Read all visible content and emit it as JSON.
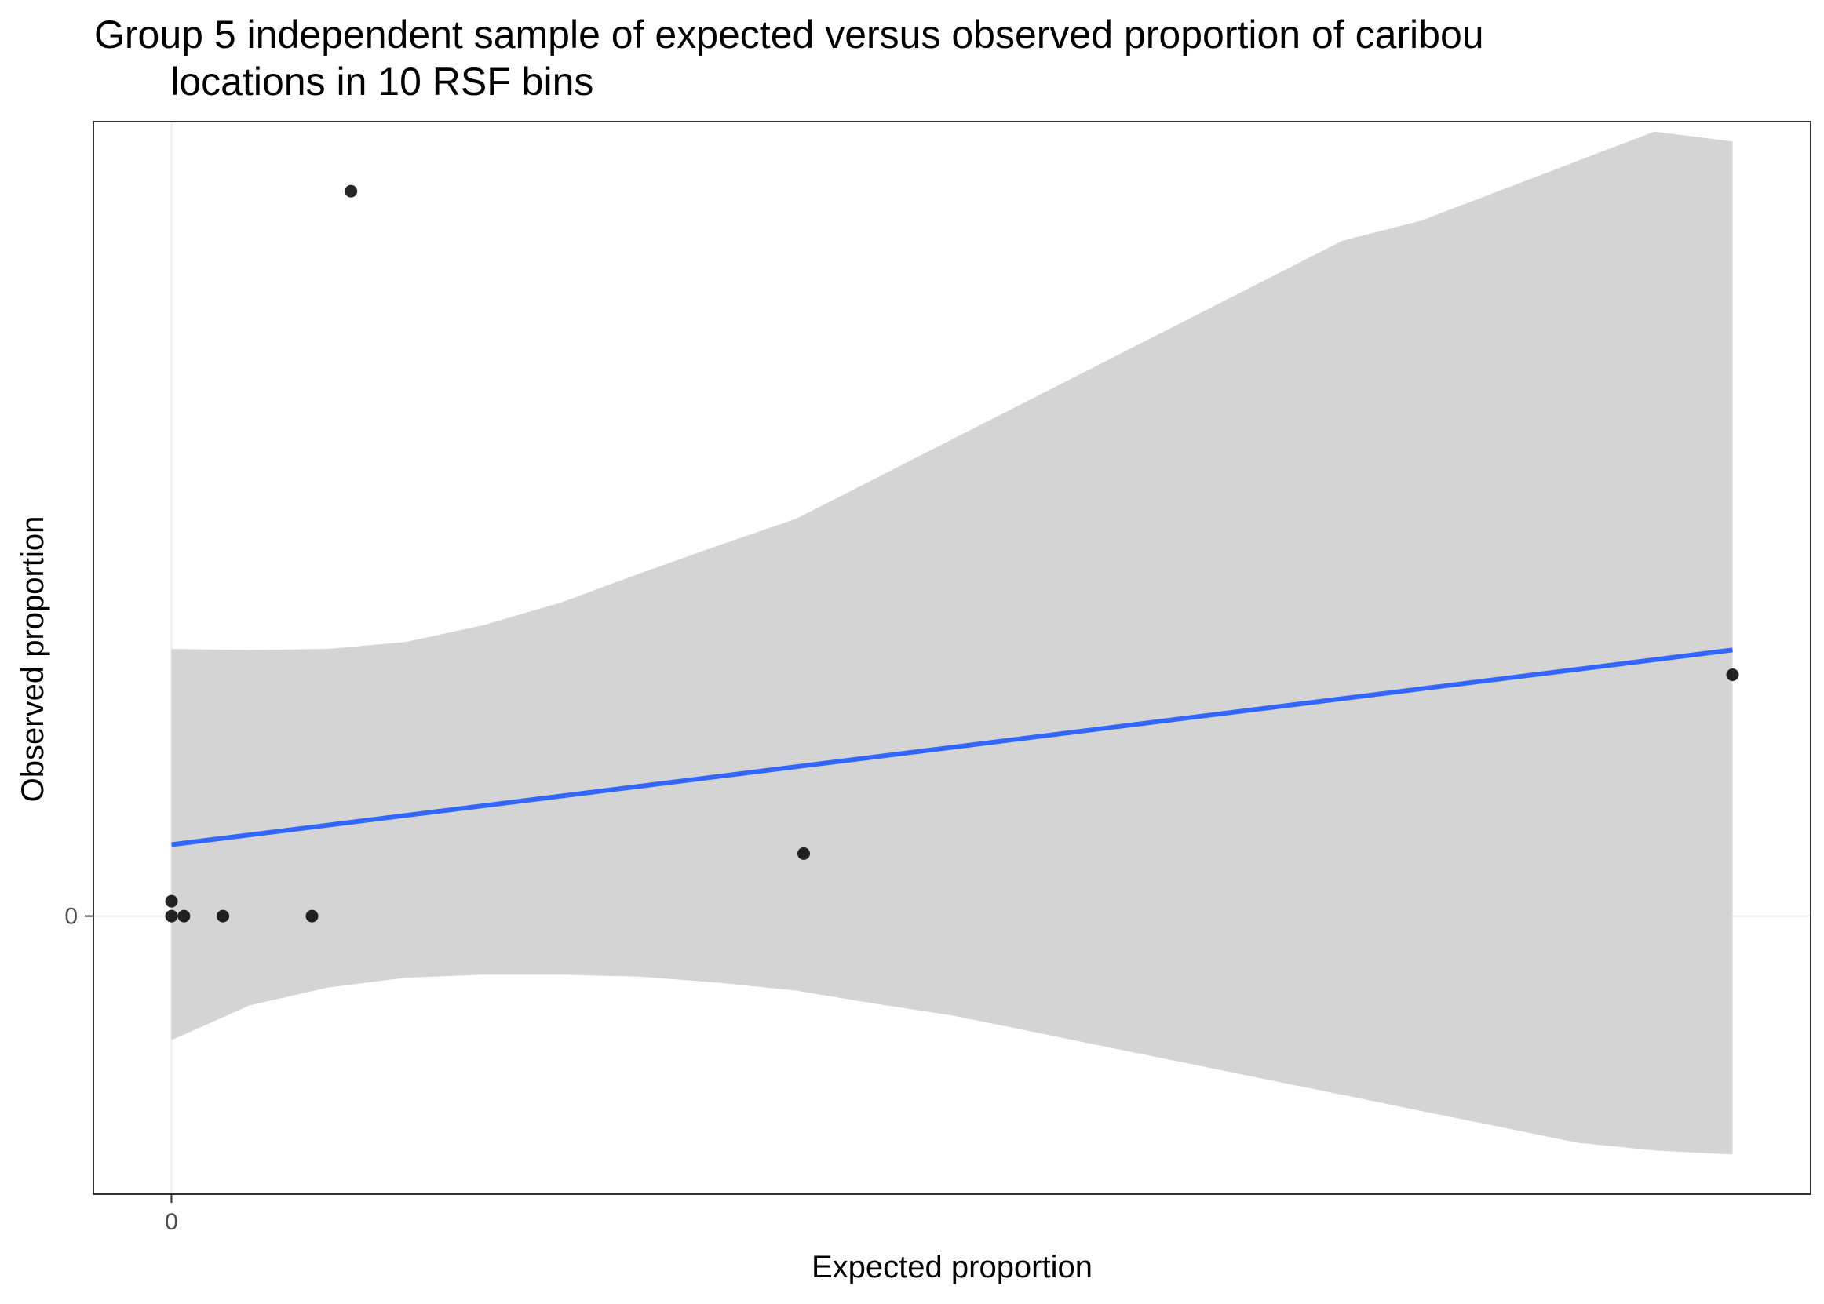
{
  "chart_data": {
    "type": "scatter",
    "title": "Group 5 independent sample of expected versus observed proportion of caribou\n       locations in 10 RSF bins",
    "xlabel": "Expected proportion",
    "ylabel": "Observed proportion",
    "x_ticks": [
      "0"
    ],
    "y_ticks": [
      "0"
    ],
    "xlim": [
      -0.05,
      1.05
    ],
    "ylim": [
      -0.28,
      0.8
    ],
    "grid": true,
    "points": [
      {
        "x": 0.0,
        "y": 0.015
      },
      {
        "x": 0.0,
        "y": 0.0
      },
      {
        "x": 0.008,
        "y": 0.0
      },
      {
        "x": 0.033,
        "y": 0.0
      },
      {
        "x": 0.09,
        "y": 0.0
      },
      {
        "x": 0.115,
        "y": 0.73
      },
      {
        "x": 0.405,
        "y": 0.063
      },
      {
        "x": 1.0,
        "y": 0.243
      }
    ],
    "fit": {
      "x": [
        0.0,
        1.0
      ],
      "y": [
        0.072,
        0.268
      ]
    },
    "confidence_band": {
      "x": [
        0.0,
        0.05,
        0.1,
        0.15,
        0.2,
        0.25,
        0.3,
        0.35,
        0.4,
        0.45,
        0.5,
        0.55,
        0.6,
        0.65,
        0.7,
        0.75,
        0.8,
        0.85,
        0.9,
        0.95,
        1.0
      ],
      "upper": [
        0.269,
        0.268,
        0.269,
        0.276,
        0.293,
        0.316,
        0.345,
        0.373,
        0.4,
        0.44,
        0.48,
        0.52,
        0.56,
        0.6,
        0.64,
        0.68,
        0.7,
        0.73,
        0.76,
        0.79,
        0.78
      ],
      "lower": [
        -0.125,
        -0.09,
        -0.072,
        -0.062,
        -0.059,
        -0.059,
        -0.061,
        -0.067,
        -0.075,
        -0.088,
        -0.1,
        -0.116,
        -0.132,
        -0.148,
        -0.164,
        -0.18,
        -0.196,
        -0.212,
        -0.228,
        -0.236,
        -0.24
      ]
    },
    "colors": {
      "points": "#000000",
      "fit": "#3366ff",
      "band": "#d4d4d4",
      "panel_border": "#333333",
      "grid": "#ebebeb"
    }
  }
}
